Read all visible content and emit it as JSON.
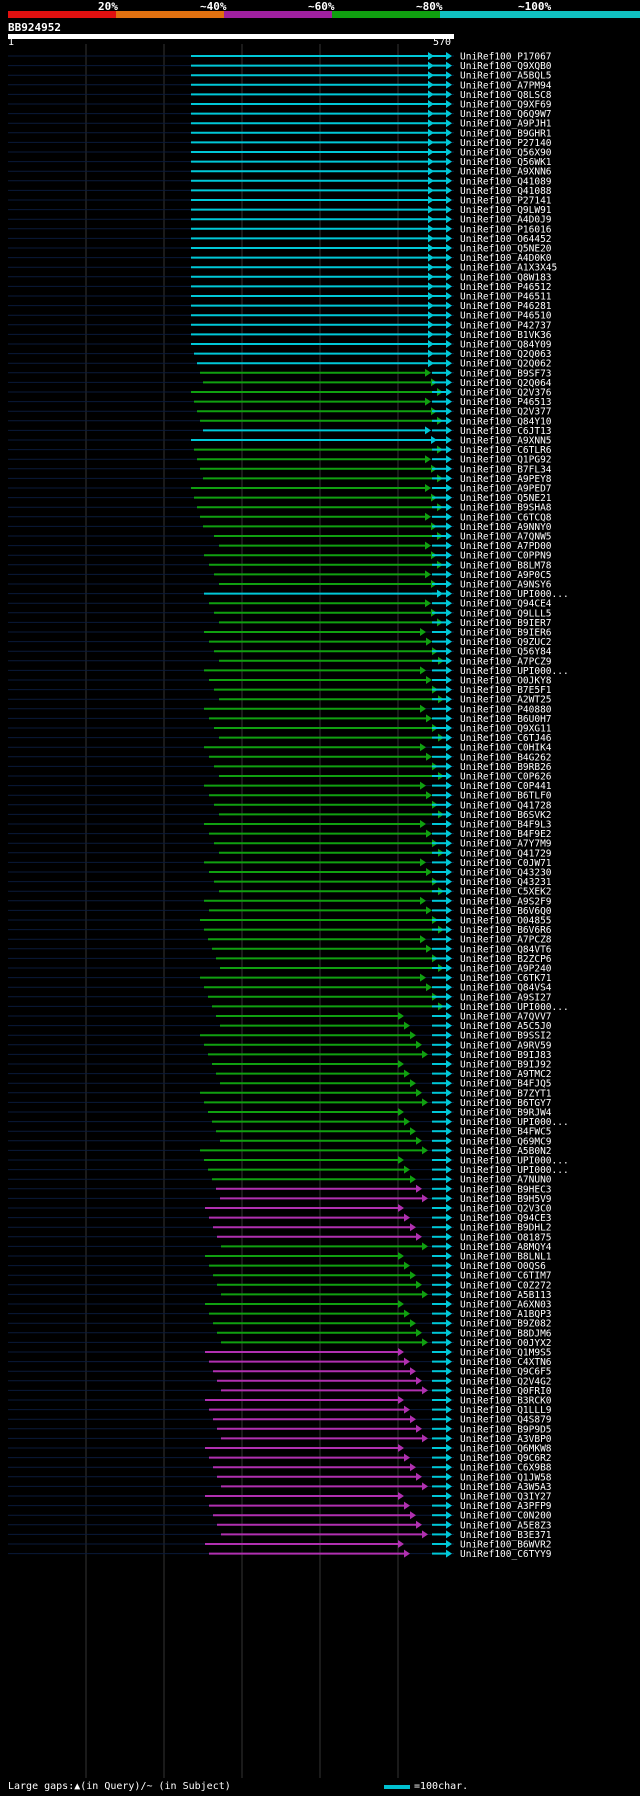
{
  "legend": {
    "labels": [
      "20%",
      "~40%",
      "~60%",
      "~80%",
      "~100%"
    ],
    "colors": {
      "c20": "#e01010",
      "c40": "#e07010",
      "c60": "#a020a0",
      "c80": "#10a010",
      "c100": "#10c0c0"
    }
  },
  "query": {
    "id": "BB924952",
    "start": "1",
    "end": "570"
  },
  "hits": [
    "UniRef100_P17067",
    "UniRef100_Q9XQB0",
    "UniRef100_A5BQL5",
    "UniRef100_A7PM94",
    "UniRef100_Q8LSC8",
    "UniRef100_Q9XF69",
    "UniRef100_Q6Q9W7",
    "UniRef100_A9PJH1",
    "UniRef100_B9GHR1",
    "UniRef100_P27140",
    "UniRef100_Q56X90",
    "UniRef100_Q56WK1",
    "UniRef100_A9XNN6",
    "UniRef100_Q41089",
    "UniRef100_Q41088",
    "UniRef100_P27141",
    "UniRef100_Q9LW91",
    "UniRef100_A4D0J9",
    "UniRef100_P16016",
    "UniRef100_O64452",
    "UniRef100_Q5NE20",
    "UniRef100_A4D0K0",
    "UniRef100_A1X3X45",
    "UniRef100_Q8W183",
    "UniRef100_P46512",
    "UniRef100_P46511",
    "UniRef100_P46281",
    "UniRef100_P46510",
    "UniRef100_P42737",
    "UniRef100_B1VK36",
    "UniRef100_Q84Y09",
    "UniRef100_Q2Q063",
    "UniRef100_Q2Q062",
    "UniRef100_B9SF73",
    "UniRef100_Q2Q064",
    "UniRef100_Q2V376",
    "UniRef100_P46513",
    "UniRef100_Q2V377",
    "UniRef100_Q84Y10",
    "UniRef100_C6JT13",
    "UniRef100_A9XNN5",
    "UniRef100_C6TLR6",
    "UniRef100_Q1PG92",
    "UniRef100_B7FL34",
    "UniRef100_A9PEY8",
    "UniRef100_A9PED7",
    "UniRef100_Q5NE21",
    "UniRef100_B9SHA8",
    "UniRef100_C6TCQ8",
    "UniRef100_A9NNY0",
    "UniRef100_A7QNW5",
    "UniRef100_A7PD00",
    "UniRef100_C0PPN9",
    "UniRef100_B8LM78",
    "UniRef100_A9P0C5",
    "UniRef100_A9NSY6",
    "UniRef100_UPI000...",
    "UniRef100_Q94CE4",
    "UniRef100_Q9LLL5",
    "UniRef100_B9IER7",
    "UniRef100_B9IER6",
    "UniRef100_Q9ZUC2",
    "UniRef100_Q56Y84",
    "UniRef100_A7PCZ9",
    "UniRef100_UPI000...",
    "UniRef100_O0JKY8",
    "UniRef100_B7E5F1",
    "UniRef100_A2WT25",
    "UniRef100_P40880",
    "UniRef100_B6U0H7",
    "UniRef100_Q9XG11",
    "UniRef100_C6TJ46",
    "UniRef100_C0HIK4",
    "UniRef100_B4G262",
    "UniRef100_B9RB26",
    "UniRef100_C0P626",
    "UniRef100_C0P441",
    "UniRef100_B6TLF0",
    "UniRef100_Q41728",
    "UniRef100_B6SVK2",
    "UniRef100_B4F9L3",
    "UniRef100_B4F9E2",
    "UniRef100_A7Y7M9",
    "UniRef100_Q41729",
    "UniRef100_C0JW71",
    "UniRef100_Q43230",
    "UniRef100_Q43231",
    "UniRef100_C5XEK2",
    "UniRef100_A9S2F9",
    "UniRef100_B6V6Q0",
    "UniRef100_O04855",
    "UniRef100_B6V6R6",
    "UniRef100_A7PCZ8",
    "UniRef100_Q84VT6",
    "UniRef100_B2ZCP6",
    "UniRef100_A9P240",
    "UniRef100_C6TK71",
    "UniRef100_Q84VS4",
    "UniRef100_A9SI27",
    "UniRef100_UPI000...",
    "UniRef100_A7QVV7",
    "UniRef100_A5C5J0",
    "UniRef100_B9SSI2",
    "UniRef100_A9RV59",
    "UniRef100_B9IJ83",
    "UniRef100_B9IJ92",
    "UniRef100_A9TMC2",
    "UniRef100_B4FJQ5",
    "UniRef100_B7ZYT1",
    "UniRef100_B6TGY7",
    "UniRef100_B9RJW4",
    "UniRef100_UPI000...",
    "UniRef100_B4FWC5",
    "UniRef100_Q69MC9",
    "UniRef100_A5B0N2",
    "UniRef100_UPI000...",
    "UniRef100_UPI000...",
    "UniRef100_A7NUN0",
    "UniRef100_B9HEC3",
    "UniRef100_B9H5V9",
    "UniRef100_Q2V3C0",
    "UniRef100_Q94CE3",
    "UniRef100_B9DHL2",
    "UniRef100_O81875",
    "UniRef100_A8MQY4",
    "UniRef100_B8LNL1",
    "UniRef100_O0QS6",
    "UniRef100_C6TIM7",
    "UniRef100_C0Z272",
    "UniRef100_A5B113",
    "UniRef100_A6XN03",
    "UniRef100_A1BQP3",
    "UniRef100_B9Z082",
    "UniRef100_B8DJM6",
    "UniRef100_O0JYX2",
    "UniRef100_Q1M9S5",
    "UniRef100_C4XTN6",
    "UniRef100_Q9C6F5",
    "UniRef100_Q2V4G2",
    "UniRef100_Q0FRI0",
    "UniRef100_B3RCK0",
    "UniRef100_Q1LLL9",
    "UniRef100_Q4S879",
    "UniRef100_B9P9D5",
    "UniRef100_A3VBP0",
    "UniRef100_Q6MKW8",
    "UniRef100_Q9C6R2",
    "UniRef100_C6X9B8",
    "UniRef100_Q1JW58",
    "UniRef100_A3W5A3",
    "UniRef100_Q3IY27",
    "UniRef100_A3PFP9",
    "UniRef100_C0N200",
    "UniRef100_A5E8Z3",
    "UniRef100_B3E371",
    "UniRef100_B6WVR2",
    "UniRef100_C6TYY9"
  ],
  "footer": {
    "gaps_text": "Large gaps:▲(in Query)/~ (in Subject)",
    "scale_text": "=100char."
  }
}
